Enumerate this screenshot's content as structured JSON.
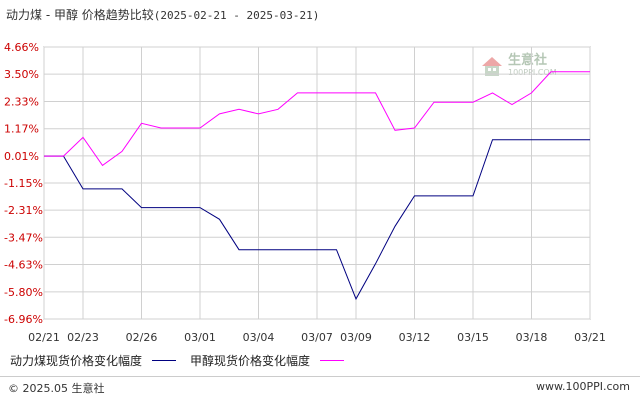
{
  "title": {
    "main": "动力煤 - 甲醇 价格趋势比较",
    "range": "(2025-02-21 - 2025-03-21)"
  },
  "watermark": {
    "name": "生意社",
    "url": "100PPI.COM"
  },
  "footer": {
    "copyright": "© 2025.05 生意社",
    "site": "www.100PPI.com"
  },
  "colors": {
    "series1": "#000080",
    "series2": "#ff00ff",
    "grid": "#d0d0d0",
    "axis": "#888888"
  },
  "chart_data": {
    "type": "line",
    "ylim": [
      -6.96,
      4.66
    ],
    "yticks": [
      "4.66%",
      "3.50%",
      "2.33%",
      "1.17%",
      "0.01%",
      "-1.15%",
      "-2.31%",
      "-3.47%",
      "-4.63%",
      "-5.80%",
      "-6.96%"
    ],
    "yticks_values": [
      4.66,
      3.5,
      2.33,
      1.17,
      0.01,
      -1.15,
      -2.31,
      -3.47,
      -4.63,
      -5.8,
      -6.96
    ],
    "x": [
      "02/21",
      "02/22",
      "02/23",
      "02/24",
      "02/25",
      "02/26",
      "02/27",
      "02/28",
      "03/01",
      "03/02",
      "03/03",
      "03/04",
      "03/05",
      "03/06",
      "03/07",
      "03/08",
      "03/09",
      "03/10",
      "03/11",
      "03/12",
      "03/13",
      "03/14",
      "03/15",
      "03/16",
      "03/17",
      "03/18",
      "03/19",
      "03/20",
      "03/21"
    ],
    "xticks": [
      "02/21",
      "02/23",
      "02/26",
      "03/01",
      "03/04",
      "03/07",
      "03/09",
      "03/12",
      "03/15",
      "03/18",
      "03/21"
    ],
    "legend_position": "bottom-left",
    "grid": true,
    "series": [
      {
        "name": "动力煤现货价格变化幅度",
        "values": [
          0,
          0,
          -1.4,
          -1.4,
          -1.4,
          -2.2,
          -2.2,
          -2.2,
          -2.2,
          -2.7,
          -4.0,
          -4.0,
          -4.0,
          -4.0,
          -4.0,
          -4.0,
          -6.1,
          -4.6,
          -3.0,
          -1.7,
          -1.7,
          -1.7,
          -1.7,
          0.7,
          0.7,
          0.7,
          0.7,
          0.7,
          0.7
        ]
      },
      {
        "name": "甲醇现货价格变化幅度",
        "values": [
          0,
          0,
          0.8,
          -0.4,
          0.2,
          1.4,
          1.2,
          1.2,
          1.2,
          1.8,
          2.0,
          1.8,
          2.0,
          2.7,
          2.7,
          2.7,
          2.7,
          2.7,
          1.1,
          1.2,
          2.3,
          2.3,
          2.3,
          2.7,
          2.2,
          2.7,
          3.6,
          3.6,
          3.6
        ]
      }
    ]
  }
}
